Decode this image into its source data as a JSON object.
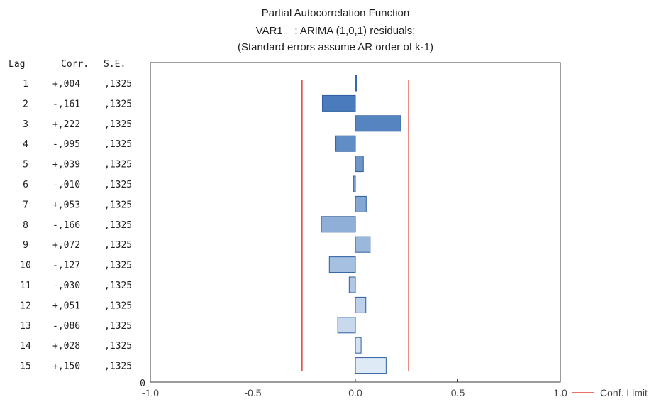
{
  "chart_data": {
    "type": "bar",
    "orientation": "horizontal",
    "title": "Partial Autocorrelation Function",
    "subtitle": "VAR1    : ARIMA (1,0,1) residuals;",
    "subtitle2": "(Standard errors assume AR order of k-1)",
    "table_headers": {
      "lag": "Lag",
      "corr": "Corr.",
      "se": "S.E."
    },
    "rows": [
      {
        "lag": "1",
        "corr": "+,004",
        "se": ",1325",
        "value": 0.004
      },
      {
        "lag": "2",
        "corr": "-,161",
        "se": ",1325",
        "value": -0.161
      },
      {
        "lag": "3",
        "corr": "+,222",
        "se": ",1325",
        "value": 0.222
      },
      {
        "lag": "4",
        "corr": "-,095",
        "se": ",1325",
        "value": -0.095
      },
      {
        "lag": "5",
        "corr": "+,039",
        "se": ",1325",
        "value": 0.039
      },
      {
        "lag": "6",
        "corr": "-,010",
        "se": ",1325",
        "value": -0.01
      },
      {
        "lag": "7",
        "corr": "+,053",
        "se": ",1325",
        "value": 0.053
      },
      {
        "lag": "8",
        "corr": "-,166",
        "se": ",1325",
        "value": -0.166
      },
      {
        "lag": "9",
        "corr": "+,072",
        "se": ",1325",
        "value": 0.072
      },
      {
        "lag": "10",
        "corr": "-,127",
        "se": ",1325",
        "value": -0.127
      },
      {
        "lag": "11",
        "corr": "-,030",
        "se": ",1325",
        "value": -0.03
      },
      {
        "lag": "12",
        "corr": "+,051",
        "se": ",1325",
        "value": 0.051
      },
      {
        "lag": "13",
        "corr": "-,086",
        "se": ",1325",
        "value": -0.086
      },
      {
        "lag": "14",
        "corr": "+,028",
        "se": ",1325",
        "value": 0.028
      },
      {
        "lag": "15",
        "corr": "+,150",
        "se": ",1325",
        "value": 0.15
      }
    ],
    "zero_row_label": "0",
    "xlim": [
      -1.0,
      1.0
    ],
    "x_ticks": [
      -1.0,
      -0.5,
      0.0,
      0.5,
      1.0
    ],
    "x_tick_labels": [
      "-1.0",
      "-0.5",
      "0.0",
      "0.5",
      "1.0"
    ],
    "conf_limit": 0.26,
    "legend": {
      "label": "Conf. Limit",
      "placement": "bottom-right"
    },
    "colors": {
      "conf_line": "#e0403a",
      "bar_edge": "#2d5f9e",
      "bar_dark": "#3f73b8",
      "bar_light": "#dfeaf7",
      "axis": "#3a3a3a"
    }
  }
}
